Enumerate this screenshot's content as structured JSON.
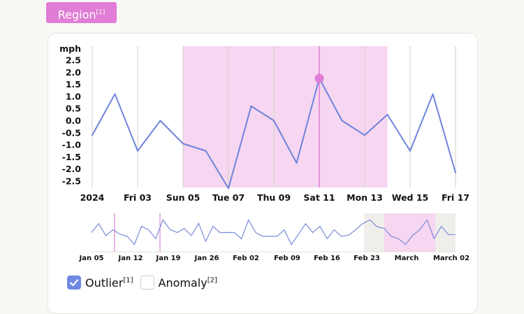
{
  "region_button": {
    "label": "Region",
    "sup": "[1]"
  },
  "chart_data": [
    {
      "type": "line",
      "ylabel": "mph",
      "yticks": [
        "2.5",
        "2.0",
        "1.5",
        "1.0",
        "0.5",
        "0.0",
        "-0.5",
        "-1.0",
        "-1.5",
        "-2.0",
        "-2.5"
      ],
      "ylim": [
        -2.8,
        2.8
      ],
      "xticks": [
        {
          "day": 1,
          "label": "2024"
        },
        {
          "day": 3,
          "label": "Fri 03"
        },
        {
          "day": 5,
          "label": "Sun 05"
        },
        {
          "day": 7,
          "label": "Tue 07"
        },
        {
          "day": 9,
          "label": "Thu 09"
        },
        {
          "day": 11,
          "label": "Sat 11"
        },
        {
          "day": 13,
          "label": "Mon 13"
        },
        {
          "day": 15,
          "label": "Wed 15"
        },
        {
          "day": 17,
          "label": "Fri 17"
        }
      ],
      "x": [
        1,
        2,
        3,
        4,
        5,
        6,
        7,
        8,
        9,
        10,
        11,
        12,
        13,
        14,
        15,
        16,
        17
      ],
      "values": [
        -0.6,
        1.1,
        -1.25,
        0.0,
        -0.95,
        -1.25,
        -2.8,
        0.6,
        0.0,
        -1.75,
        1.75,
        0.0,
        -0.6,
        0.25,
        -1.25,
        1.1,
        -2.15
      ],
      "highlight_region": {
        "from_day": 5,
        "to_day": 14
      },
      "highlight_point": {
        "day": 11,
        "value": 1.75
      },
      "grid": "vertical",
      "colors": {
        "line": "#6e83db",
        "region": "#f6d6f1",
        "highlight": "#e07dd6",
        "grid": "#d9d4cc"
      }
    },
    {
      "type": "line",
      "role": "overview",
      "xticks": [
        "Jan 05",
        "Jan 12",
        "Jan 19",
        "Jan 26",
        "Feb 02",
        "Feb 09",
        "Feb 16",
        "Feb 23",
        "March",
        "March 02"
      ],
      "values": [
        5.0,
        7.6,
        4.1,
        5.8,
        4.5,
        3.9,
        1.5,
        6.8,
        5.8,
        3.2,
        8.7,
        5.9,
        5.0,
        6.2,
        4.1,
        7.7,
        2.4,
        6.8,
        5.0,
        5.0,
        5.0,
        3.2,
        8.7,
        5.0,
        3.9,
        3.9,
        3.9,
        5.8,
        1.5,
        4.5,
        7.6,
        5.0,
        6.8,
        3.2,
        5.8,
        3.9,
        4.2,
        5.8,
        7.6,
        8.7,
        6.7,
        6.2,
        3.9,
        3.2,
        1.5,
        4.2,
        5.8,
        8.7,
        3.2,
        6.8,
        4.4,
        4.4
      ],
      "ylim": [
        0,
        10
      ],
      "colors": {
        "line": "#7a8bd8",
        "window": "#efeeeb",
        "region": "#f6d6f1",
        "marker": "#d66fcf"
      }
    }
  ],
  "legend": [
    {
      "label": "Outlier",
      "sup": "[1]",
      "checked": true
    },
    {
      "label": "Anomaly",
      "sup": "[2]",
      "checked": false
    }
  ]
}
